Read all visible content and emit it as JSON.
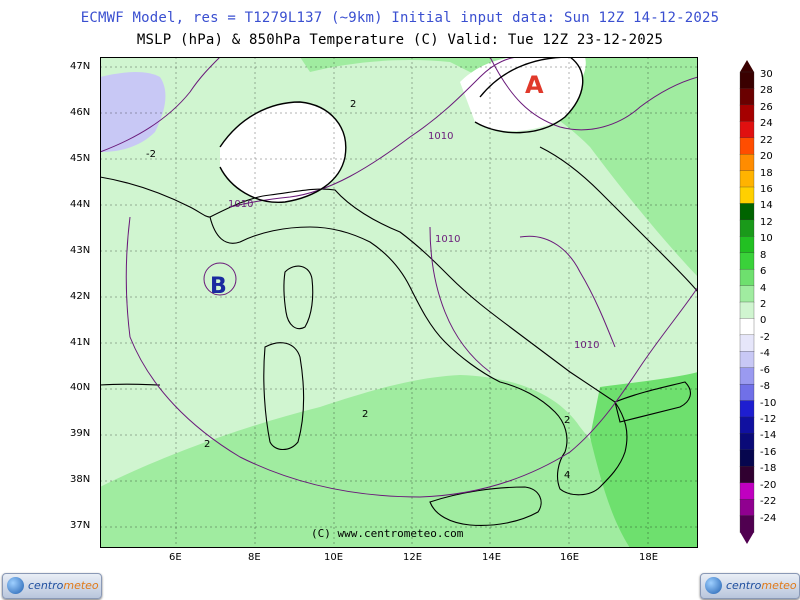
{
  "header": {
    "line1": "ECMWF Model, res = T1279L137 (~9km)    Initial input data: Sun 12Z 14-12-2025",
    "line2": "MSLP (hPa) & 850hPa Temperature (C)  Valid: Tue 12Z 23-12-2025"
  },
  "axes": {
    "lat_labels": [
      "47N",
      "46N",
      "45N",
      "44N",
      "43N",
      "42N",
      "41N",
      "40N",
      "39N",
      "38N",
      "37N"
    ],
    "lon_labels": [
      "6E",
      "8E",
      "10E",
      "12E",
      "14E",
      "16E",
      "18E"
    ]
  },
  "map": {
    "high_label": "A",
    "low_label": "B",
    "isobar_labels": [
      "1010",
      "1010",
      "1010",
      "1010"
    ],
    "isotherm_labels": [
      "2",
      "-2",
      "2",
      "2",
      "2",
      "4"
    ],
    "high_color": "#e0392b",
    "low_color": "#1a2aa0"
  },
  "colorbar": {
    "values": [
      "30",
      "28",
      "26",
      "24",
      "22",
      "20",
      "18",
      "16",
      "14",
      "12",
      "10",
      "8",
      "6",
      "4",
      "2",
      "0",
      "-2",
      "-4",
      "-6",
      "-8",
      "-10",
      "-12",
      "-14",
      "-16",
      "-18",
      "-20",
      "-22",
      "-24"
    ],
    "colors": [
      "#3a0000",
      "#6a0000",
      "#a50000",
      "#e01010",
      "#ff4d00",
      "#ff8c00",
      "#ffb300",
      "#ffd000",
      "#006400",
      "#1a9a1a",
      "#22c022",
      "#3ad23a",
      "#6ee06e",
      "#a0eca0",
      "#d0f5d0",
      "#ffffff",
      "#e6e6fa",
      "#c8c8f5",
      "#9a9af0",
      "#7070e8",
      "#1e1ed0",
      "#1010a0",
      "#0a0a78",
      "#06064e",
      "#300030",
      "#c000c0",
      "#900090",
      "#500050"
    ]
  },
  "credit": "(C) www.centrometeo.com",
  "logos": {
    "left_part1": "centro",
    "left_part2": "meteo",
    "right_part1": "centro",
    "right_part2": "meteo"
  }
}
